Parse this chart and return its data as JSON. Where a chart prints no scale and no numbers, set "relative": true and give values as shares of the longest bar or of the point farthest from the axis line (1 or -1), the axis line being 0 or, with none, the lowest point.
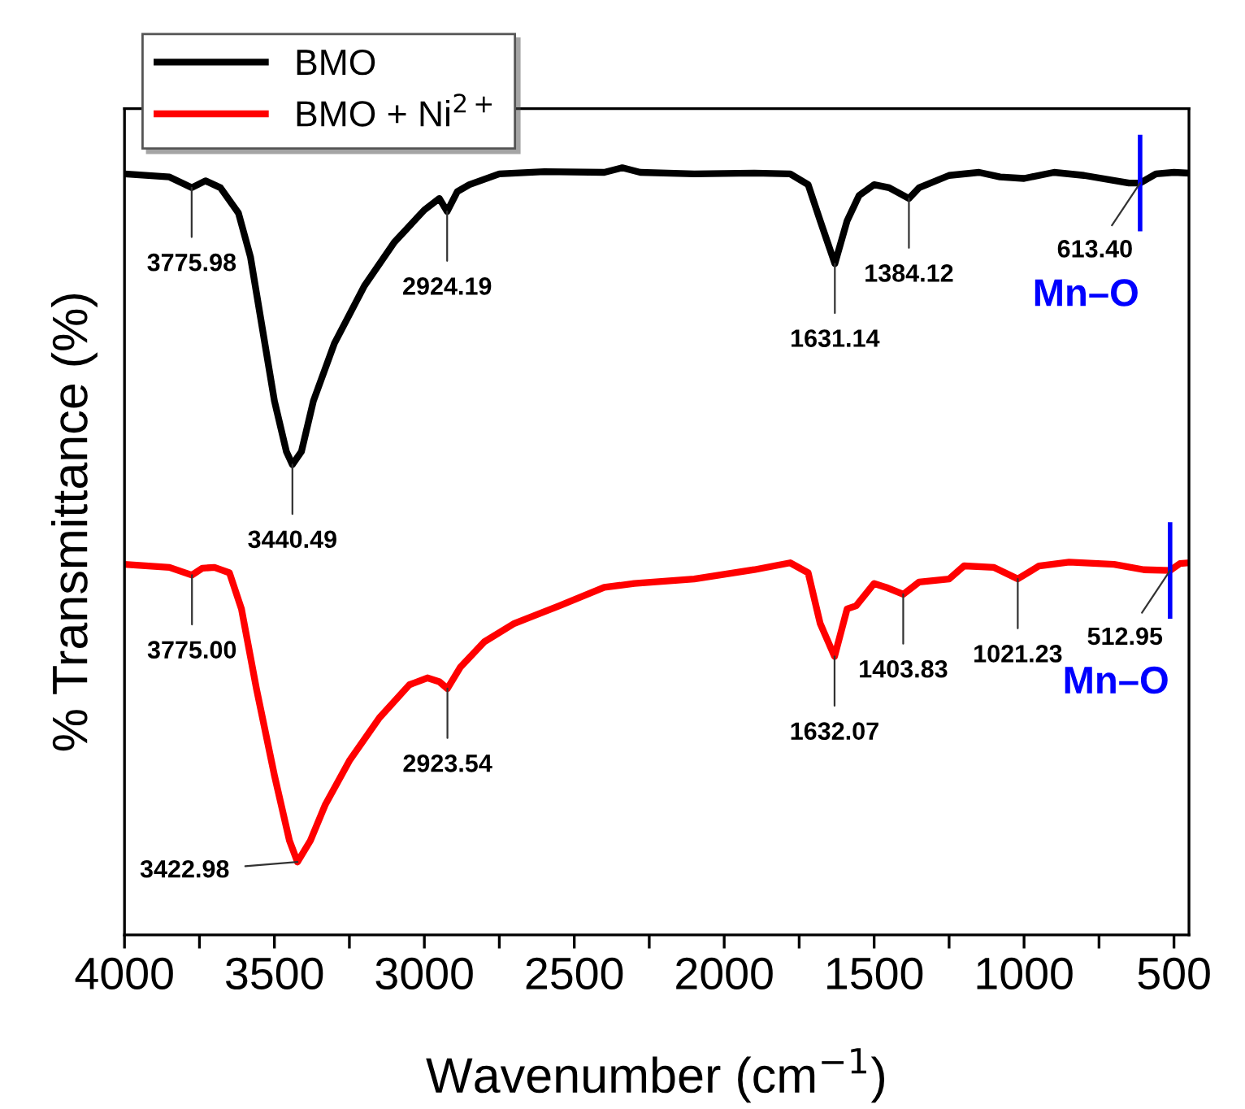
{
  "chart_data": {
    "type": "line",
    "relative": true,
    "xlabel": "Wavenumber (cm$^{−1}$)",
    "ylabel": "% Transmittance (%)",
    "xlim": [
      4000,
      450
    ],
    "xticks": [
      4000,
      {
        "value": 3750,
        "label": null
      },
      3500,
      {
        "value": 3250,
        "label": null
      },
      3000,
      {
        "value": 2750,
        "label": null
      },
      2500,
      {
        "value": 2250,
        "label": null
      },
      2000,
      {
        "value": 1750,
        "label": null
      },
      1500,
      {
        "value": 1250,
        "label": null
      },
      1000,
      {
        "value": 750,
        "label": null
      },
      500
    ],
    "tick_labels": "x",
    "grid": false,
    "legend": "top left",
    "line_style": "solid",
    "marker": "none",
    "series": [
      {
        "name": "BMO",
        "color": "#000000",
        "x": [
          4000,
          3850,
          3776,
          3730,
          3680,
          3620,
          3580,
          3540,
          3500,
          3460,
          3440,
          3410,
          3370,
          3300,
          3200,
          3100,
          3000,
          2950,
          2924,
          2890,
          2850,
          2750,
          2600,
          2400,
          2340,
          2280,
          2100,
          1900,
          1780,
          1720,
          1680,
          1631,
          1590,
          1550,
          1500,
          1450,
          1384,
          1350,
          1250,
          1150,
          1080,
          1000,
          900,
          800,
          650,
          613,
          560,
          500,
          450
        ],
        "values": [
          0.992,
          0.988,
          0.974,
          0.983,
          0.974,
          0.941,
          0.884,
          0.79,
          0.696,
          0.63,
          0.613,
          0.63,
          0.696,
          0.771,
          0.846,
          0.903,
          0.945,
          0.96,
          0.943,
          0.969,
          0.978,
          0.992,
          0.995,
          0.994,
          1.0,
          0.994,
          0.992,
          0.993,
          0.992,
          0.978,
          0.931,
          0.875,
          0.931,
          0.964,
          0.978,
          0.974,
          0.96,
          0.974,
          0.99,
          0.994,
          0.988,
          0.986,
          0.994,
          0.99,
          0.98,
          0.98,
          0.992,
          0.994,
          0.993
        ]
      },
      {
        "name": "BMO + Ni$^{2+}$",
        "color": "#ff0000",
        "x": [
          4000,
          3850,
          3775,
          3740,
          3700,
          3650,
          3610,
          3560,
          3500,
          3450,
          3423,
          3380,
          3330,
          3250,
          3150,
          3050,
          2990,
          2950,
          2923,
          2880,
          2800,
          2700,
          2550,
          2400,
          2300,
          2100,
          1900,
          1780,
          1720,
          1680,
          1632,
          1590,
          1560,
          1500,
          1460,
          1403,
          1350,
          1250,
          1200,
          1100,
          1021,
          950,
          850,
          700,
          600,
          513,
          480,
          450
        ],
        "values": [
          0.483,
          0.479,
          0.469,
          0.478,
          0.479,
          0.472,
          0.425,
          0.321,
          0.208,
          0.123,
          0.095,
          0.123,
          0.17,
          0.227,
          0.283,
          0.326,
          0.335,
          0.33,
          0.321,
          0.349,
          0.382,
          0.406,
          0.429,
          0.453,
          0.458,
          0.464,
          0.476,
          0.485,
          0.472,
          0.406,
          0.363,
          0.425,
          0.429,
          0.458,
          0.453,
          0.444,
          0.46,
          0.464,
          0.481,
          0.479,
          0.464,
          0.481,
          0.486,
          0.483,
          0.476,
          0.475,
          0.484,
          0.485
        ]
      }
    ],
    "annotations": [
      {
        "text": "3775.98",
        "x": 3776,
        "y": 0.974
      },
      {
        "text": "3440.49",
        "x": 3440,
        "y": 0.613
      },
      {
        "text": "2924.19",
        "x": 2924,
        "y": 0.943
      },
      {
        "text": "1631.14",
        "x": 1631,
        "y": 0.875
      },
      {
        "text": "1384.12",
        "x": 1384,
        "y": 0.96
      },
      {
        "text": "613.40\nMn–O",
        "x": 613,
        "y": 0.98
      },
      {
        "text": "3775.00",
        "x": 3775,
        "y": 0.469
      },
      {
        "text": "3422.98",
        "x": 3423,
        "y": 0.095
      },
      {
        "text": "2923.54",
        "x": 2923,
        "y": 0.321
      },
      {
        "text": "1632.07",
        "x": 1632,
        "y": 0.363
      },
      {
        "text": "1403.83",
        "x": 1403,
        "y": 0.444
      },
      {
        "text": "1021.23",
        "x": 1021,
        "y": 0.464
      },
      {
        "text": "512.95\nMn–O",
        "x": 513,
        "y": 0.475
      }
    ]
  }
}
